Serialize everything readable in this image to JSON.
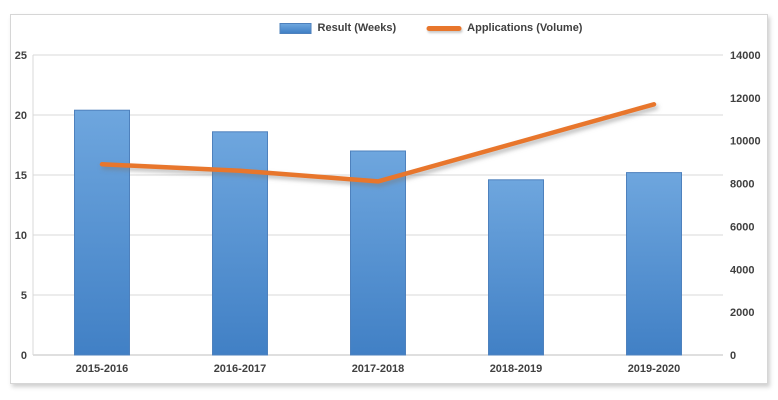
{
  "chart_data": {
    "type": "bar+line combo",
    "title": "",
    "categories": [
      "2015-2016",
      "2016-2017",
      "2017-2018",
      "2018-2019",
      "2019-2020"
    ],
    "series": [
      {
        "name": "Result (Weeks)",
        "type": "bar",
        "axis": "left",
        "values": [
          20.4,
          18.6,
          17.0,
          14.6,
          15.2
        ]
      },
      {
        "name": "Applications (Volume)",
        "type": "line",
        "axis": "right",
        "values": [
          8900,
          8600,
          8100,
          9900,
          11700
        ]
      }
    ],
    "left_axis": {
      "min": 0,
      "max": 25,
      "step": 5,
      "tick_labels": [
        "0",
        "5",
        "10",
        "15",
        "20",
        "25"
      ]
    },
    "right_axis": {
      "min": 0,
      "max": 14000,
      "step": 2000,
      "tick_labels": [
        "0",
        "2000",
        "4000",
        "6000",
        "8000",
        "10000",
        "12000",
        "14000"
      ]
    },
    "legend_position": "top",
    "grid": true
  },
  "colors": {
    "bar_top": "#6EA6DE",
    "bar_bottom": "#4180C5",
    "bar_border": "#4E81BD",
    "line": "#E8762C",
    "gridline": "#D9D9D9",
    "axis_line": "#BFBFBF",
    "text": "#404040",
    "frame_border": "#D6D6D6"
  }
}
